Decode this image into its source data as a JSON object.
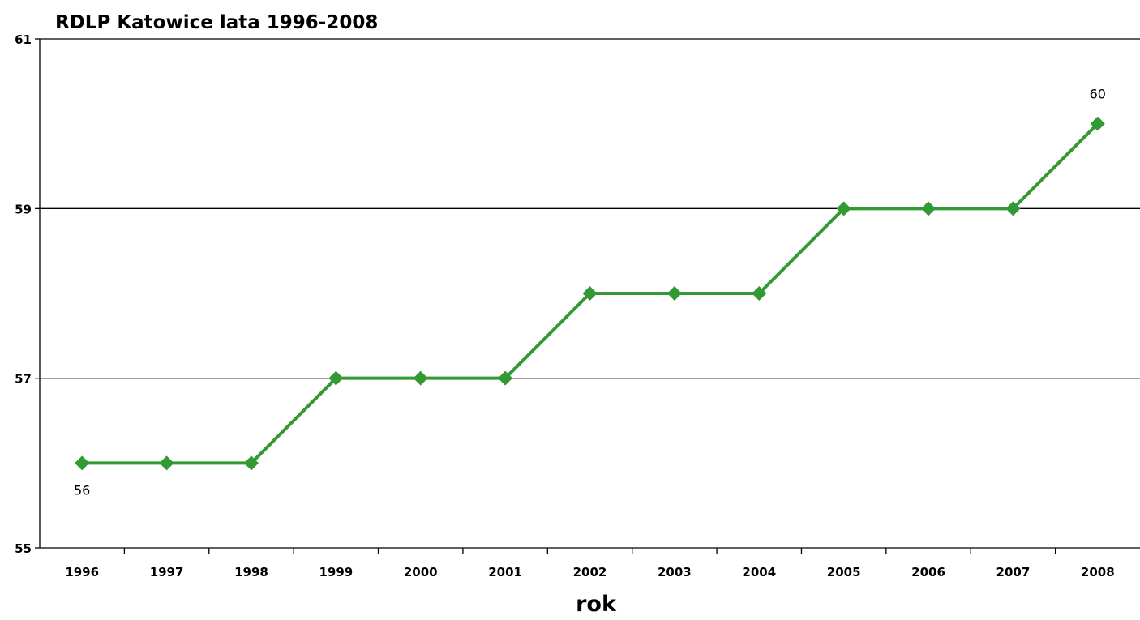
{
  "chart_data": {
    "type": "line",
    "title": "RDLP Katowice lata 1996-2008",
    "xlabel": "rok",
    "ylabel": "",
    "categories": [
      "1996",
      "1997",
      "1998",
      "1999",
      "2000",
      "2001",
      "2002",
      "2003",
      "2004",
      "2005",
      "2006",
      "2007",
      "2008"
    ],
    "series": [
      {
        "values": [
          56,
          56,
          56,
          57,
          57,
          57,
          58,
          58,
          58,
          59,
          59,
          59,
          60
        ],
        "color": "#339933",
        "marker": "diamond"
      }
    ],
    "ylim": [
      55,
      61
    ],
    "yticks": [
      "55",
      "57",
      "59",
      "61"
    ],
    "grid": true,
    "legend": "none",
    "data_labels": [
      {
        "category": "1996",
        "value": "56"
      },
      {
        "category": "2008",
        "value": "60"
      }
    ]
  }
}
